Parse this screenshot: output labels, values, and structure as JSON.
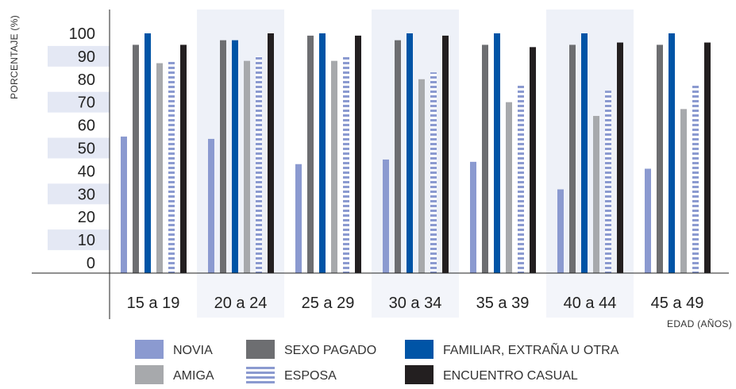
{
  "chart_data": {
    "type": "bar",
    "title": "",
    "xlabel": "EDAD (AÑOS)",
    "ylabel": "PORCENTAJE (%)",
    "ylim": [
      0,
      100
    ],
    "yticks": [
      0,
      10,
      20,
      30,
      40,
      50,
      60,
      70,
      80,
      90,
      100
    ],
    "categories": [
      "15 a 19",
      "20 a 24",
      "25 a 29",
      "30 a 34",
      "35 a 39",
      "40 a 44",
      "45 a 49"
    ],
    "series": [
      {
        "name": "NOVIA",
        "color": "#8b9ad0",
        "pattern": "solid",
        "values": [
          55,
          54,
          43,
          45,
          44,
          32,
          41
        ]
      },
      {
        "name": "SEXO PAGADO",
        "color": "#6d6e71",
        "pattern": "solid",
        "values": [
          95,
          97,
          99,
          97,
          95,
          95,
          95
        ]
      },
      {
        "name": "FAMILIAR, EXTRAÑA U OTRA",
        "color": "#0054a6",
        "pattern": "solid",
        "values": [
          100,
          97,
          100,
          100,
          100,
          100,
          100
        ]
      },
      {
        "name": "AMIGA",
        "color": "#a7a9ac",
        "pattern": "solid",
        "values": [
          87,
          88,
          88,
          80,
          70,
          64,
          67
        ]
      },
      {
        "name": "ESPOSA",
        "color": "#8b9ad0",
        "pattern": "striped",
        "values": [
          88,
          90,
          90,
          83,
          78,
          75,
          78
        ]
      },
      {
        "name": "ENCUENTRO CASUAL",
        "color": "#231f20",
        "pattern": "solid",
        "values": [
          95,
          100,
          99,
          99,
          94,
          96,
          96
        ]
      }
    ],
    "bar_order": [
      "NOVIA",
      "SEXO PAGADO",
      "FAMILIAR, EXTRAÑA U OTRA",
      "AMIGA",
      "ESPOSA",
      "ENCUENTRO CASUAL"
    ],
    "legend_placement": "bottom",
    "legend_order": [
      [
        "NOVIA",
        "SEXO PAGADO",
        "FAMILIAR, EXTRAÑA U OTRA"
      ],
      [
        "AMIGA",
        "ESPOSA",
        "ENCUENTRO CASUAL"
      ]
    ],
    "grid": false,
    "colors": {
      "band_y": "#e4e8f4",
      "band_x": "#eef1f8",
      "axis": "#222222"
    }
  }
}
